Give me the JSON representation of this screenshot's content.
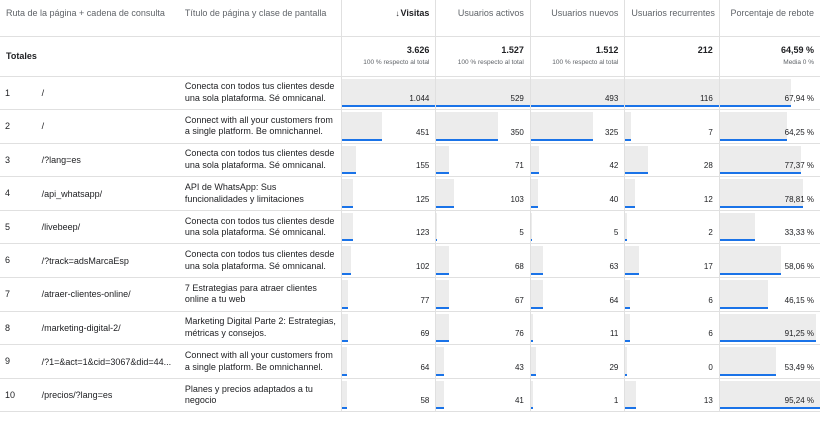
{
  "headers": {
    "path": "Ruta de la página + cadena de consulta",
    "title": "Título de página y clase de pantalla",
    "visits": "Visitas",
    "active": "Usuarios activos",
    "new": "Usuarios nuevos",
    "returning": "Usuarios recurrentes",
    "bounce": "Porcentaje de rebote",
    "sort_icon": "arrow-down-icon"
  },
  "totals": {
    "label": "Totales",
    "visits": "3.626",
    "visits_sub": "100 % respecto al total",
    "active": "1.527",
    "active_sub": "100 % respecto al total",
    "new": "1.512",
    "new_sub": "100 % respecto al total",
    "returning": "212",
    "bounce": "64,59 %",
    "bounce_sub": "Media 0 %"
  },
  "rows": [
    {
      "idx": "1",
      "path": "/",
      "title": "Conecta con todos tus clientes desde una sola plataforma. Sé omnicanal.",
      "visits": "1.044",
      "active": "529",
      "new": "493",
      "returning": "116",
      "bounce": "67,94 %",
      "bars": {
        "visits": 1.0,
        "active": 1.0,
        "new": 1.0,
        "returning": 1.0,
        "bounce": 0.71
      }
    },
    {
      "idx": "2",
      "path": "/",
      "title": "Connect with all your customers from a single platform. Be omnichannel.",
      "visits": "451",
      "active": "350",
      "new": "325",
      "returning": "7",
      "bounce": "64,25 %",
      "bars": {
        "visits": 0.43,
        "active": 0.66,
        "new": 0.66,
        "returning": 0.06,
        "bounce": 0.67
      }
    },
    {
      "idx": "3",
      "path": "/?lang=es",
      "title": "Conecta con todos tus clientes desde una sola plataforma. Sé omnicanal.",
      "visits": "155",
      "active": "71",
      "new": "42",
      "returning": "28",
      "bounce": "77,37 %",
      "bars": {
        "visits": 0.15,
        "active": 0.13,
        "new": 0.09,
        "returning": 0.24,
        "bounce": 0.81
      }
    },
    {
      "idx": "4",
      "path": "/api_whatsapp/",
      "title": "API de WhatsApp: Sus funcionalidades y limitaciones",
      "visits": "125",
      "active": "103",
      "new": "40",
      "returning": "12",
      "bounce": "78,81 %",
      "bars": {
        "visits": 0.12,
        "active": 0.19,
        "new": 0.08,
        "returning": 0.1,
        "bounce": 0.83
      }
    },
    {
      "idx": "5",
      "path": "/livebeep/",
      "title": "Conecta con todos tus clientes desde una sola plataforma. Sé omnicanal.",
      "visits": "123",
      "active": "5",
      "new": "5",
      "returning": "2",
      "bounce": "33,33 %",
      "bars": {
        "visits": 0.12,
        "active": 0.01,
        "new": 0.01,
        "returning": 0.02,
        "bounce": 0.35
      }
    },
    {
      "idx": "6",
      "path": "/?track=adsMarcaEsp",
      "title": "Conecta con todos tus clientes desde una sola plataforma. Sé omnicanal.",
      "visits": "102",
      "active": "68",
      "new": "63",
      "returning": "17",
      "bounce": "58,06 %",
      "bars": {
        "visits": 0.1,
        "active": 0.13,
        "new": 0.13,
        "returning": 0.15,
        "bounce": 0.61
      }
    },
    {
      "idx": "7",
      "path": "/atraer-clientes-online/",
      "title": "7 Estrategias para atraer clientes online a tu web",
      "visits": "77",
      "active": "67",
      "new": "64",
      "returning": "6",
      "bounce": "46,15 %",
      "bars": {
        "visits": 0.07,
        "active": 0.13,
        "new": 0.13,
        "returning": 0.05,
        "bounce": 0.48
      }
    },
    {
      "idx": "8",
      "path": "/marketing-digital-2/",
      "title": "Marketing Digital Parte 2: Estrategias, métricas y consejos.",
      "visits": "69",
      "active": "76",
      "new": "11",
      "returning": "6",
      "bounce": "91,25 %",
      "bars": {
        "visits": 0.07,
        "active": 0.14,
        "new": 0.02,
        "returning": 0.05,
        "bounce": 0.96
      }
    },
    {
      "idx": "9",
      "path": "/?1=&act=1&cid=3067&did=44...",
      "title": "Connect with all your customers from a single platform. Be omnichannel.",
      "visits": "64",
      "active": "43",
      "new": "29",
      "returning": "0",
      "bounce": "53,49 %",
      "bars": {
        "visits": 0.06,
        "active": 0.08,
        "new": 0.06,
        "returning": 0.0,
        "bounce": 0.56
      }
    },
    {
      "idx": "10",
      "path": "/precios/?lang=es",
      "title": "Planes y precios adaptados a tu negocio",
      "visits": "58",
      "active": "41",
      "new": "1",
      "returning": "13",
      "bounce": "95,24 %",
      "bars": {
        "visits": 0.06,
        "active": 0.08,
        "new": 0.0,
        "returning": 0.11,
        "bounce": 1.0
      }
    }
  ]
}
